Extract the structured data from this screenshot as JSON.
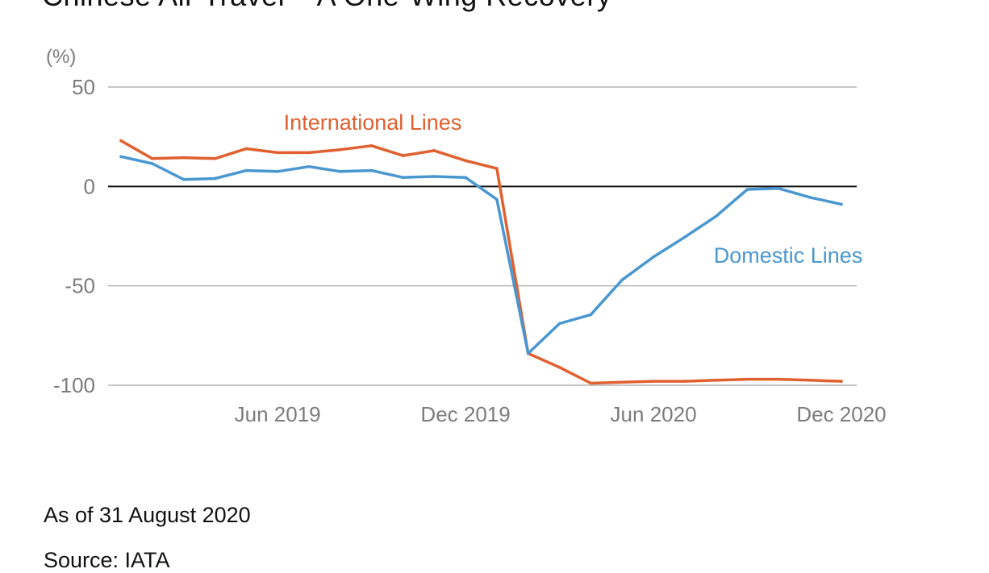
{
  "header": {
    "title": "Chinese Air Travel – A One-Wing Recovery"
  },
  "footer": {
    "as_of": "As of 31 August 2020",
    "source": "Source: IATA"
  },
  "colors": {
    "international": "#e0602f",
    "domestic": "#4a97d0",
    "zero_line": "#111111",
    "grid": "#b4b4b4",
    "tick_text": "#7b7b7b"
  },
  "chart_data": {
    "type": "line",
    "ylabel": "(%)",
    "ylim": [
      -100,
      50
    ],
    "yticks": [
      50,
      0,
      -50,
      -100
    ],
    "ytick_labels": [
      "50",
      "0",
      "-50",
      "-100"
    ],
    "x_start": "2019-01",
    "x_end": "2020-12",
    "xticks": [
      "2019-06",
      "2019-12",
      "2020-06",
      "2020-12"
    ],
    "xtick_labels": [
      "Jun 2019",
      "Dec 2019",
      "Jun 2020",
      "Dec 2020"
    ],
    "grid": true,
    "series": [
      {
        "name": "International Lines",
        "color": "#e0602f",
        "x": [
          "2019-01",
          "2019-02",
          "2019-03",
          "2019-04",
          "2019-05",
          "2019-06",
          "2019-07",
          "2019-08",
          "2019-09",
          "2019-10",
          "2019-11",
          "2019-12",
          "2020-01",
          "2020-02",
          "2020-03",
          "2020-04",
          "2020-05",
          "2020-06",
          "2020-07",
          "2020-08",
          "2020-09",
          "2020-10",
          "2020-11",
          "2020-12"
        ],
        "values": [
          23,
          14,
          14.5,
          14,
          19,
          17,
          17,
          18.5,
          20.5,
          15.5,
          18,
          13,
          9,
          -84,
          -91,
          -99,
          -98.5,
          -98,
          -98,
          -97.5,
          -97,
          -97,
          -97.5,
          -98
        ]
      },
      {
        "name": "Domestic Lines",
        "color": "#4a97d0",
        "x": [
          "2019-01",
          "2019-02",
          "2019-03",
          "2019-04",
          "2019-05",
          "2019-06",
          "2019-07",
          "2019-08",
          "2019-09",
          "2019-10",
          "2019-11",
          "2019-12",
          "2020-01",
          "2020-02",
          "2020-03",
          "2020-04",
          "2020-05",
          "2020-06",
          "2020-07",
          "2020-08",
          "2020-09",
          "2020-10",
          "2020-11",
          "2020-12"
        ],
        "values": [
          15,
          11.5,
          3.5,
          4,
          8,
          7.5,
          10,
          7.5,
          8,
          4.5,
          5,
          4.5,
          -6.5,
          -84,
          -69,
          -64.5,
          -47,
          -35.5,
          -25.5,
          -15,
          -1.5,
          -1,
          -5.5,
          -9
        ]
      }
    ]
  }
}
